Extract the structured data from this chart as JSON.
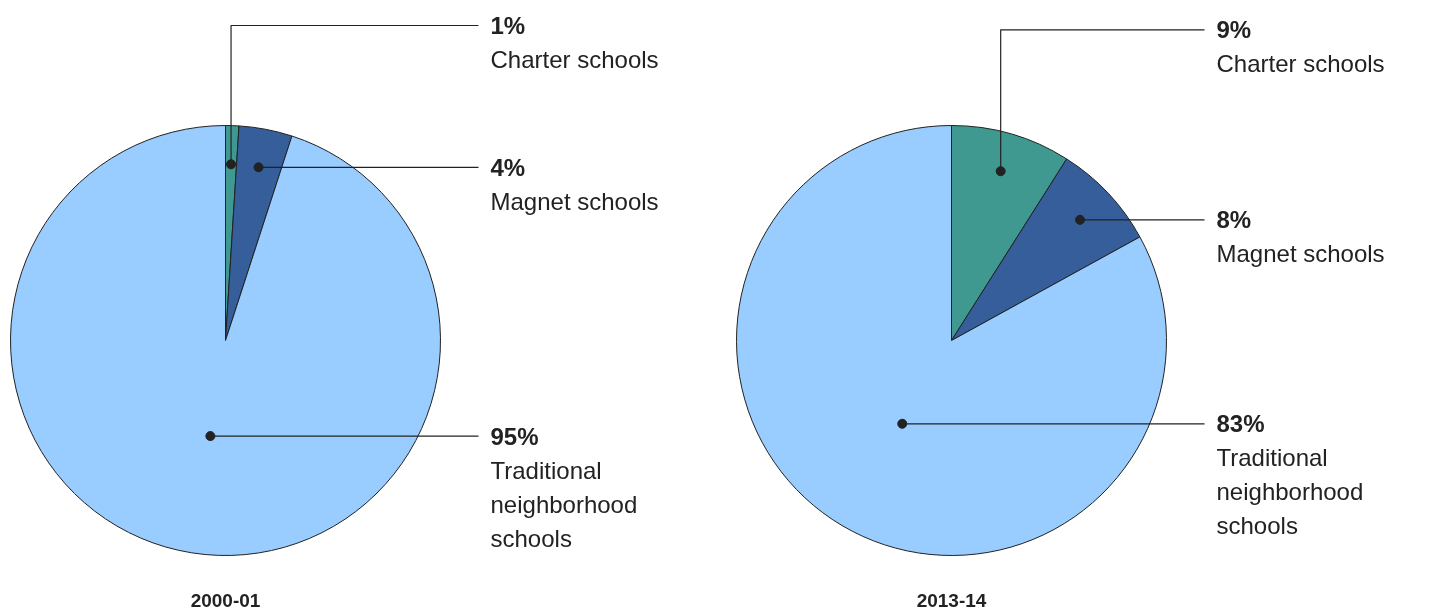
{
  "chart_data": [
    {
      "type": "pie",
      "title": "2000-01",
      "categories": [
        "Charter schools",
        "Magnet schools",
        "Traditional neighborhood schools"
      ],
      "values": [
        1,
        4,
        95
      ],
      "colors": [
        "#3f9990",
        "#355e9a",
        "#99ccff"
      ],
      "value_labels": [
        "1%",
        "4%",
        "95%"
      ]
    },
    {
      "type": "pie",
      "title": "2013-14",
      "categories": [
        "Charter schools",
        "Magnet schools",
        "Traditional neighborhood schools"
      ],
      "values": [
        9,
        8,
        83
      ],
      "colors": [
        "#3f9990",
        "#355e9a",
        "#99ccff"
      ],
      "value_labels": [
        "9%",
        "8%",
        "83%"
      ]
    }
  ]
}
